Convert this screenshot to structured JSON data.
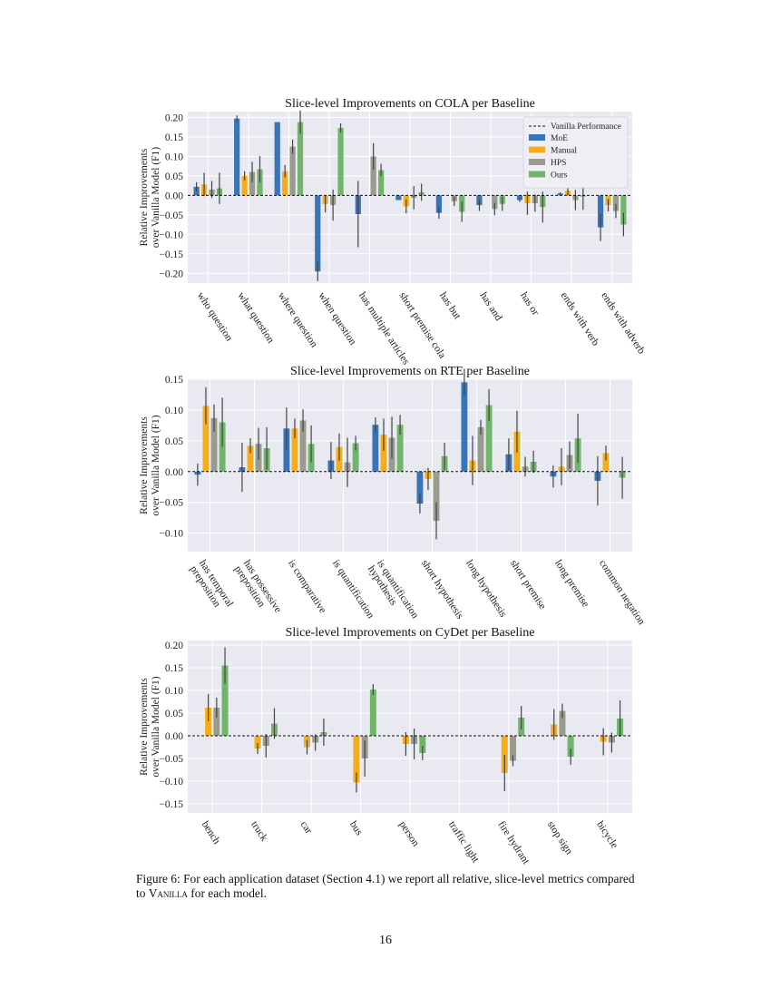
{
  "page": {
    "caption_part1": "Figure 6: For each application dataset (Section 4.1) we report all relative, slice-level metrics compared to ",
    "caption_vanilla": "Vanilla",
    "caption_part2": " for each model.",
    "page_number": "16"
  },
  "legend": {
    "baseline_label": "Vanilla Performance",
    "models": [
      "MoE",
      "Manual",
      "HPS",
      "Ours"
    ]
  },
  "colors": {
    "moe": "#3a74b8",
    "manual": "#f7ad1b",
    "hps": "#9a9b8f",
    "ours": "#72b46b",
    "plot_bg": "#e9e9f1",
    "grid": "#ffffff",
    "errorbar": "#444444"
  },
  "chart_data": [
    {
      "type": "bar",
      "title": "Slice-level Improvements on COLA per Baseline",
      "ylabel": "Relative Improvements over Vanilla Model (F1)",
      "ylim": [
        -0.225,
        0.215
      ],
      "yticks": [
        0.2,
        0.15,
        0.1,
        0.05,
        0.0,
        -0.05,
        -0.1,
        -0.15,
        -0.2
      ],
      "ytick_labels": [
        "0.20",
        "0.15",
        "0.10",
        "0.05",
        "0.00",
        "−0.05",
        "−0.10",
        "−0.15",
        "−0.20"
      ],
      "grid": true,
      "legend_position": "top-right",
      "baseline": 0,
      "categories": [
        "who question",
        "what question",
        "where question",
        "when question",
        "has multiple articles",
        "short premise cola",
        "has but",
        "has and",
        "has or",
        "ends with verb",
        "ends with adverb"
      ],
      "series": [
        {
          "name": "MoE",
          "values": [
            0.022,
            0.197,
            0.188,
            -0.195,
            -0.048,
            -0.012,
            -0.045,
            -0.025,
            -0.012,
            0.005,
            -0.082
          ],
          "errors": [
            0.012,
            0.008,
            0.0,
            0.025,
            0.085,
            0.0,
            0.015,
            0.015,
            0.005,
            0.003,
            0.035
          ]
        },
        {
          "name": "Manual",
          "values": [
            0.028,
            0.05,
            0.062,
            -0.022,
            0.0,
            -0.028,
            0.0,
            0.0,
            -0.02,
            0.012,
            -0.025
          ]
        },
        {
          "name": "HPS",
          "values": [
            0.015,
            0.06,
            0.125,
            -0.025,
            0.1,
            -0.006,
            -0.015,
            -0.035,
            -0.02,
            -0.012,
            -0.04
          ]
        },
        {
          "name": "Ours",
          "values": [
            0.018,
            0.067,
            0.188,
            0.173,
            0.065,
            0.008,
            -0.042,
            -0.022,
            -0.03,
            -0.003,
            -0.075
          ]
        }
      ]
    },
    {
      "type": "bar",
      "title": "Slice-level Improvements on RTE per Baseline",
      "ylabel": "Relative Improvements over Vanilla Model (F1)",
      "ylim": [
        -0.13,
        0.15
      ],
      "yticks": [
        0.15,
        0.1,
        0.05,
        0.0,
        -0.05,
        -0.1
      ],
      "ytick_labels": [
        "0.15",
        "0.10",
        "0.05",
        "0.00",
        "−0.05",
        "−0.10"
      ],
      "grid": true,
      "baseline": 0,
      "categories": [
        "has temporal preposition",
        "has possessive preposition",
        "is comparative",
        "is quantification",
        "is quantification hypothesis",
        "short hypothesis",
        "long hypothesis",
        "short premise",
        "long premise",
        "common negation"
      ],
      "category_lines": [
        [
          "has temporal",
          "preposition"
        ],
        [
          "has possessive",
          "preposition"
        ],
        [
          "is comparative"
        ],
        [
          "is quantification"
        ],
        [
          "is quantification",
          "hypothesis"
        ],
        [
          "short hypothesis"
        ],
        [
          "long hypothesis"
        ],
        [
          "short premise"
        ],
        [
          "long premise"
        ],
        [
          "common negation"
        ]
      ],
      "series": [
        {
          "name": "MoE",
          "values": [
            -0.005,
            0.007,
            0.07,
            0.018,
            0.076,
            -0.052,
            0.145,
            0.028,
            -0.008,
            -0.015
          ]
        },
        {
          "name": "Manual",
          "values": [
            0.107,
            0.042,
            0.07,
            0.04,
            0.06,
            -0.012,
            0.018,
            0.065,
            0.008,
            0.03
          ]
        },
        {
          "name": "HPS",
          "values": [
            0.087,
            0.045,
            0.083,
            0.015,
            0.055,
            -0.08,
            0.072,
            0.008,
            0.027,
            0.0
          ]
        },
        {
          "name": "Ours",
          "values": [
            0.08,
            0.038,
            0.045,
            0.046,
            0.076,
            0.025,
            0.108,
            0.016,
            0.054,
            -0.01
          ]
        }
      ]
    },
    {
      "type": "bar",
      "title": "Slice-level Improvements on CyDet per Baseline",
      "ylabel": "Relative Improvements over Vanilla Model (F1)",
      "ylim": [
        -0.17,
        0.21
      ],
      "yticks": [
        0.2,
        0.15,
        0.1,
        0.05,
        0.0,
        -0.05,
        -0.1,
        -0.15
      ],
      "ytick_labels": [
        "0.20",
        "0.15",
        "0.10",
        "0.05",
        "0.00",
        "−0.05",
        "−0.10",
        "−0.15"
      ],
      "grid": true,
      "baseline": 0,
      "categories": [
        "bench",
        "truck",
        "car",
        "bus",
        "person",
        "traffic light",
        "fire hydrant",
        "stop sign",
        "bicycle"
      ],
      "series": [
        {
          "name": "MoE",
          "values": [
            0,
            0,
            0,
            0,
            0,
            0,
            0,
            0,
            0
          ]
        },
        {
          "name": "Manual",
          "values": [
            0.062,
            -0.028,
            -0.025,
            -0.103,
            -0.018,
            0.0,
            -0.082,
            0.025,
            -0.013
          ]
        },
        {
          "name": "HPS",
          "values": [
            0.062,
            -0.022,
            -0.015,
            -0.05,
            -0.018,
            0.0,
            -0.055,
            0.055,
            -0.015
          ]
        },
        {
          "name": "Ours",
          "values": [
            0.155,
            0.027,
            0.008,
            0.102,
            -0.038,
            0.0,
            0.04,
            -0.046,
            0.038
          ]
        }
      ]
    }
  ]
}
